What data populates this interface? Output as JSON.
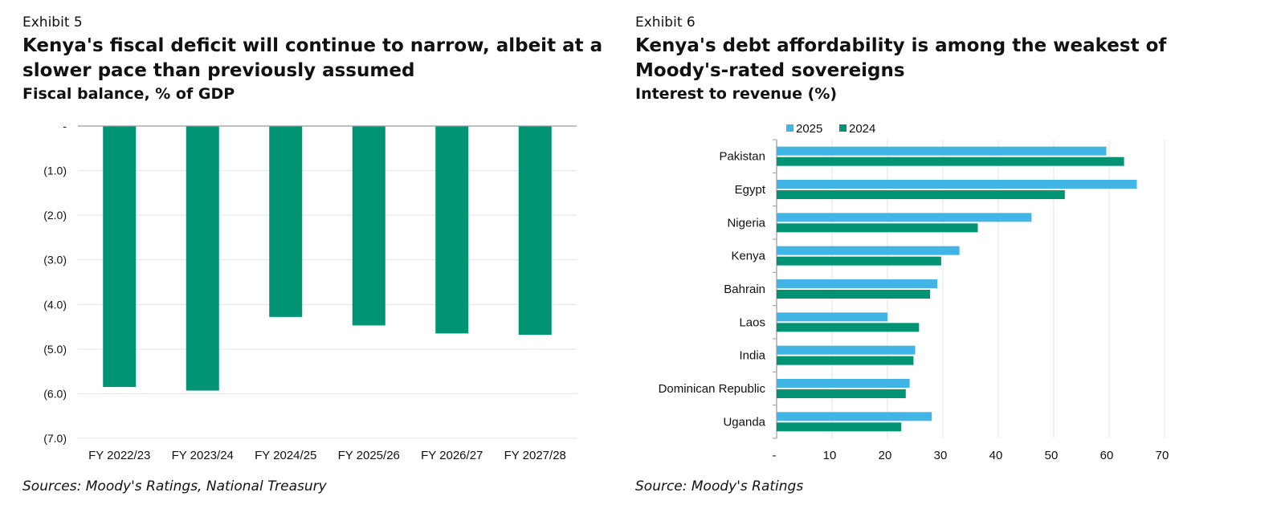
{
  "left": {
    "exhibit": "Exhibit 5",
    "title": "Kenya's fiscal deficit will continue to narrow, albeit at a slower pace than previously assumed",
    "subtitle": "Fiscal balance, % of GDP",
    "source": "Sources: Moody's Ratings, National Treasury"
  },
  "right": {
    "exhibit": "Exhibit 6",
    "title": "Kenya's debt affordability is among the weakest of Moody's-rated sovereigns",
    "subtitle": "Interest to revenue (%)",
    "source": "Source: Moody's Ratings"
  },
  "chart_data": [
    {
      "type": "bar",
      "title": "Fiscal balance, % of GDP",
      "categories": [
        "FY 2022/23",
        "FY 2023/24",
        "FY 2024/25",
        "FY 2025/26",
        "FY 2026/27",
        "FY 2027/28"
      ],
      "values": [
        -5.85,
        -5.93,
        -4.28,
        -4.47,
        -4.65,
        -4.68
      ],
      "ylim": [
        -7,
        0
      ],
      "yticks": [
        0,
        -1,
        -2,
        -3,
        -4,
        -5,
        -6,
        -7
      ],
      "ytick_labels": [
        "-",
        "(1.0)",
        "(2.0)",
        "(3.0)",
        "(4.0)",
        "(5.0)",
        "(6.0)",
        "(7.0)"
      ],
      "grid": true,
      "color": "#009474"
    },
    {
      "type": "bar",
      "orientation": "horizontal",
      "title": "Interest to revenue (%)",
      "categories": [
        "Pakistan",
        "Egypt",
        "Nigeria",
        "Kenya",
        "Bahrain",
        "Laos",
        "India",
        "Dominican Republic",
        "Uganda"
      ],
      "series": [
        {
          "name": "2025",
          "color": "#41b6e6",
          "values": [
            59.5,
            65.0,
            46.0,
            33.0,
            29.0,
            20.0,
            25.0,
            24.0,
            28.0
          ]
        },
        {
          "name": "2024",
          "color": "#009474",
          "values": [
            62.7,
            52.0,
            36.3,
            29.7,
            27.7,
            25.7,
            24.7,
            23.3,
            22.5
          ]
        }
      ],
      "xlim": [
        0,
        70
      ],
      "xticks": [
        0,
        10,
        20,
        30,
        40,
        50,
        60,
        70
      ],
      "xtick_labels": [
        "-",
        "10",
        "20",
        "30",
        "40",
        "50",
        "60",
        "70"
      ],
      "legend": "top-left",
      "grid": true
    }
  ]
}
